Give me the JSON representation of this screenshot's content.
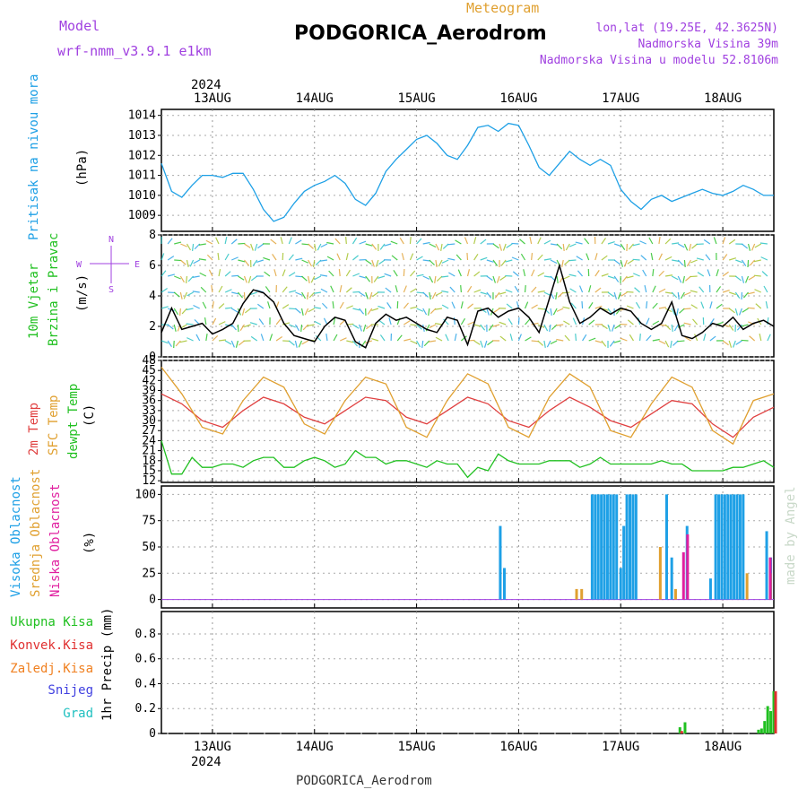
{
  "header": {
    "model_label": "Model",
    "model_name": "wrf-nmm_v3.9.1 e1km",
    "chart_kind": "Meteogram",
    "station": "PODGORICA_Aerodrom",
    "lonlat": "lon,lat (19.25E, 42.3625N)",
    "elevation": "Nadmorska Visina 39m",
    "model_elevation": "Nadmorska Visina u modelu 52.8106m",
    "footer_station": "PODGORICA_Aerodrom",
    "watermark": "made by Angel",
    "year": "2024"
  },
  "colors": {
    "pressure": "#1ea0e6",
    "wind_label": "#20c020",
    "wind_label2": "#20c020",
    "temp2m": "#e04040",
    "sfc": "#e0a030",
    "dewpt": "#20c020",
    "high_cloud": "#1ea0e6",
    "mid_cloud": "#e0a030",
    "low_cloud": "#e020a0",
    "total_precip": "#20c020",
    "conv_precip": "#e03030",
    "frz_precip": "#f08020",
    "snow": "#4040e0",
    "grad": "#20c0c0",
    "compass": "#a040e0"
  },
  "chart_data": {
    "type": "line",
    "x_ticks": [
      "13AUG",
      "14AUG",
      "15AUG",
      "16AUG",
      "17AUG",
      "18AUG"
    ],
    "x_range_days": [
      12.5,
      18.5
    ],
    "panels": [
      {
        "id": "pressure",
        "labels": [
          "Pritisak na nivou mora"
        ],
        "unit": "(hPa)",
        "ylim": [
          1008.2,
          1014.3
        ],
        "yticks": [
          1009,
          1010,
          1011,
          1012,
          1013,
          1014
        ],
        "series": [
          {
            "name": "Pritisak na nivou mora",
            "x": [
              12.5,
              12.6,
              12.7,
              12.8,
              12.9,
              13.0,
              13.1,
              13.2,
              13.3,
              13.4,
              13.5,
              13.6,
              13.7,
              13.8,
              13.9,
              14.0,
              14.1,
              14.2,
              14.3,
              14.4,
              14.5,
              14.6,
              14.7,
              14.8,
              14.9,
              15.0,
              15.1,
              15.2,
              15.3,
              15.4,
              15.5,
              15.6,
              15.7,
              15.8,
              15.9,
              16.0,
              16.1,
              16.2,
              16.3,
              16.4,
              16.5,
              16.6,
              16.7,
              16.8,
              16.9,
              17.0,
              17.1,
              17.2,
              17.3,
              17.4,
              17.5,
              17.6,
              17.7,
              17.8,
              17.9,
              18.0,
              18.1,
              18.2,
              18.3,
              18.4,
              18.5
            ],
            "y": [
              1011.6,
              1010.2,
              1009.9,
              1010.5,
              1011.0,
              1011.0,
              1010.9,
              1011.1,
              1011.1,
              1010.3,
              1009.3,
              1008.7,
              1008.9,
              1009.6,
              1010.2,
              1010.5,
              1010.7,
              1011.0,
              1010.6,
              1009.8,
              1009.5,
              1010.1,
              1011.2,
              1011.8,
              1012.3,
              1012.8,
              1013.0,
              1012.6,
              1012.0,
              1011.8,
              1012.5,
              1013.4,
              1013.5,
              1013.2,
              1013.6,
              1013.5,
              1012.5,
              1011.4,
              1011.0,
              1011.6,
              1012.2,
              1011.8,
              1011.5,
              1011.8,
              1011.5,
              1010.3,
              1009.7,
              1009.3,
              1009.8,
              1010.0,
              1009.7,
              1009.9,
              1010.1,
              1010.3,
              1010.1,
              1010.0,
              1010.2,
              1010.5,
              1010.3,
              1010.0,
              1010.0
            ]
          }
        ]
      },
      {
        "id": "wind",
        "labels": [
          "10m Vjetar",
          "Brzina i Pravac"
        ],
        "unit": "(m/s)",
        "compass": {
          "w": "W",
          "e": "E",
          "n": "N",
          "s": "S"
        },
        "ylim": [
          0,
          8
        ],
        "yticks": [
          0,
          2,
          4,
          6,
          8
        ],
        "series": [
          {
            "name": "10m Vjetar",
            "x": [
              12.5,
              12.6,
              12.7,
              12.8,
              12.9,
              13.0,
              13.1,
              13.2,
              13.3,
              13.4,
              13.5,
              13.6,
              13.7,
              13.8,
              13.9,
              14.0,
              14.1,
              14.2,
              14.3,
              14.4,
              14.5,
              14.6,
              14.7,
              14.8,
              14.9,
              15.0,
              15.1,
              15.2,
              15.3,
              15.4,
              15.5,
              15.6,
              15.7,
              15.8,
              15.9,
              16.0,
              16.1,
              16.2,
              16.3,
              16.4,
              16.5,
              16.6,
              16.7,
              16.8,
              16.9,
              17.0,
              17.1,
              17.2,
              17.3,
              17.4,
              17.5,
              17.6,
              17.7,
              17.8,
              17.9,
              18.0,
              18.1,
              18.2,
              18.3,
              18.4,
              18.5
            ],
            "y": [
              1.6,
              3.2,
              1.8,
              2.0,
              2.2,
              1.5,
              1.8,
              2.2,
              3.5,
              4.4,
              4.2,
              3.6,
              2.2,
              1.4,
              1.2,
              1.0,
              2.0,
              2.6,
              2.4,
              1.0,
              0.6,
              2.2,
              2.8,
              2.4,
              2.6,
              2.2,
              1.8,
              1.6,
              2.6,
              2.4,
              0.8,
              3.0,
              3.2,
              2.6,
              3.0,
              3.2,
              2.6,
              1.6,
              3.8,
              6.0,
              3.6,
              2.2,
              2.6,
              3.2,
              2.8,
              3.2,
              3.0,
              2.2,
              1.8,
              2.2,
              3.6,
              1.4,
              1.2,
              1.6,
              2.2,
              2.0,
              2.6,
              1.8,
              2.2,
              2.4,
              2.0
            ]
          }
        ]
      },
      {
        "id": "temp",
        "labels": [
          "2m Temp",
          "SFC Temp",
          "dewpt Temp"
        ],
        "unit": "(C)",
        "ylim": [
          11.5,
          48
        ],
        "yticks": [
          12,
          15,
          18,
          21,
          24,
          27,
          30,
          33,
          36,
          39,
          42,
          45,
          48
        ],
        "series": [
          {
            "name": "2m Temp",
            "x": [
              12.5,
              12.7,
              12.9,
              13.1,
              13.3,
              13.5,
              13.7,
              13.9,
              14.1,
              14.3,
              14.5,
              14.7,
              14.9,
              15.1,
              15.3,
              15.5,
              15.7,
              15.9,
              16.1,
              16.3,
              16.5,
              16.7,
              16.9,
              17.1,
              17.3,
              17.5,
              17.7,
              17.9,
              18.1,
              18.3,
              18.5
            ],
            "y": [
              38,
              35,
              30,
              28,
              33,
              37,
              35,
              31,
              29,
              33,
              37,
              36,
              31,
              29,
              33,
              37,
              35,
              30,
              28,
              33,
              37,
              34,
              30,
              28,
              32,
              36,
              35,
              29,
              25,
              31,
              34
            ]
          },
          {
            "name": "SFC Temp",
            "x": [
              12.5,
              12.7,
              12.9,
              13.1,
              13.3,
              13.5,
              13.7,
              13.9,
              14.1,
              14.3,
              14.5,
              14.7,
              14.9,
              15.1,
              15.3,
              15.5,
              15.7,
              15.9,
              16.1,
              16.3,
              16.5,
              16.7,
              16.9,
              17.1,
              17.3,
              17.5,
              17.7,
              17.9,
              18.1,
              18.3,
              18.5
            ],
            "y": [
              46,
              38,
              28,
              26,
              36,
              43,
              40,
              29,
              26,
              36,
              43,
              41,
              28,
              25,
              36,
              44,
              41,
              28,
              25,
              37,
              44,
              40,
              27,
              25,
              35,
              43,
              40,
              27,
              23,
              36,
              38
            ]
          },
          {
            "name": "dewpt Temp",
            "x": [
              12.5,
              12.6,
              12.7,
              12.8,
              12.9,
              13.0,
              13.1,
              13.2,
              13.3,
              13.4,
              13.5,
              13.6,
              13.7,
              13.8,
              13.9,
              14.0,
              14.1,
              14.2,
              14.3,
              14.4,
              14.5,
              14.6,
              14.7,
              14.8,
              14.9,
              15.0,
              15.1,
              15.2,
              15.3,
              15.4,
              15.5,
              15.6,
              15.7,
              15.8,
              15.9,
              16.0,
              16.1,
              16.2,
              16.3,
              16.4,
              16.5,
              16.6,
              16.7,
              16.8,
              16.9,
              17.0,
              17.1,
              17.2,
              17.3,
              17.4,
              17.5,
              17.6,
              17.7,
              17.8,
              17.9,
              18.0,
              18.1,
              18.2,
              18.3,
              18.4,
              18.5
            ],
            "y": [
              24,
              14,
              14,
              19,
              16,
              16,
              17,
              17,
              16,
              18,
              19,
              19,
              16,
              16,
              18,
              19,
              18,
              16,
              17,
              21,
              19,
              19,
              17,
              18,
              18,
              17,
              16,
              18,
              17,
              17,
              13,
              16,
              15,
              20,
              18,
              17,
              17,
              17,
              18,
              18,
              18,
              16,
              17,
              19,
              17,
              17,
              17,
              17,
              17,
              18,
              17,
              17,
              15,
              15,
              15,
              15,
              16,
              16,
              17,
              18,
              16
            ]
          }
        ]
      },
      {
        "id": "cloud",
        "labels": [
          "Visoka Oblacnost",
          "Srednja Oblacnost",
          "Niska Oblacnost"
        ],
        "unit": "(%)",
        "ylim": [
          -8,
          108
        ],
        "yticks": [
          0,
          25,
          50,
          75,
          100
        ],
        "series": [
          {
            "name": "Visoka Oblacnost",
            "x": [
              15.82,
              15.86,
              16.72,
              16.75,
              16.78,
              16.81,
              16.84,
              16.87,
              16.9,
              16.93,
              16.96,
              17.0,
              17.03,
              17.06,
              17.09,
              17.12,
              17.15,
              17.45,
              17.5,
              17.65,
              17.88,
              17.93,
              17.96,
              17.99,
              18.02,
              18.05,
              18.08,
              18.11,
              18.14,
              18.17,
              18.2,
              18.43,
              18.47
            ],
            "y": [
              70,
              30,
              100,
              100,
              100,
              100,
              100,
              100,
              100,
              100,
              100,
              30,
              70,
              100,
              100,
              100,
              100,
              100,
              40,
              70,
              20,
              100,
              100,
              100,
              100,
              100,
              100,
              100,
              100,
              100,
              100,
              65,
              40
            ]
          },
          {
            "name": "Srednja Oblacnost",
            "x": [
              16.55,
              16.6,
              17.37,
              17.52,
              18.22,
              18.45
            ],
            "y": [
              10,
              10,
              50,
              10,
              25,
              25
            ]
          },
          {
            "name": "Niska Oblacnost",
            "x": [
              17.58,
              17.62,
              18.43
            ],
            "y": [
              45,
              62,
              40
            ]
          }
        ]
      },
      {
        "id": "precip",
        "labels": [
          "Ukupna Kisa",
          "Konvek.Kisa",
          "Zaledj.Kisa",
          "Snijeg",
          "Grad"
        ],
        "unit": "1hr Precip (mm)",
        "ylim": [
          0,
          0.98
        ],
        "yticks": [
          0,
          0.2,
          0.4,
          0.6,
          0.8
        ],
        "series": [
          {
            "name": "Ukupna Kisa",
            "x": [
              17.58,
              17.63,
              18.35,
              18.38,
              18.41,
              18.44,
              18.47,
              18.5
            ],
            "y": [
              0.05,
              0.09,
              0.03,
              0.04,
              0.1,
              0.22,
              0.18,
              0.34
            ]
          },
          {
            "name": "Konvek.Kisa",
            "x": [
              17.58,
              18.5
            ],
            "y": [
              0.02,
              0.34
            ]
          }
        ]
      }
    ]
  }
}
